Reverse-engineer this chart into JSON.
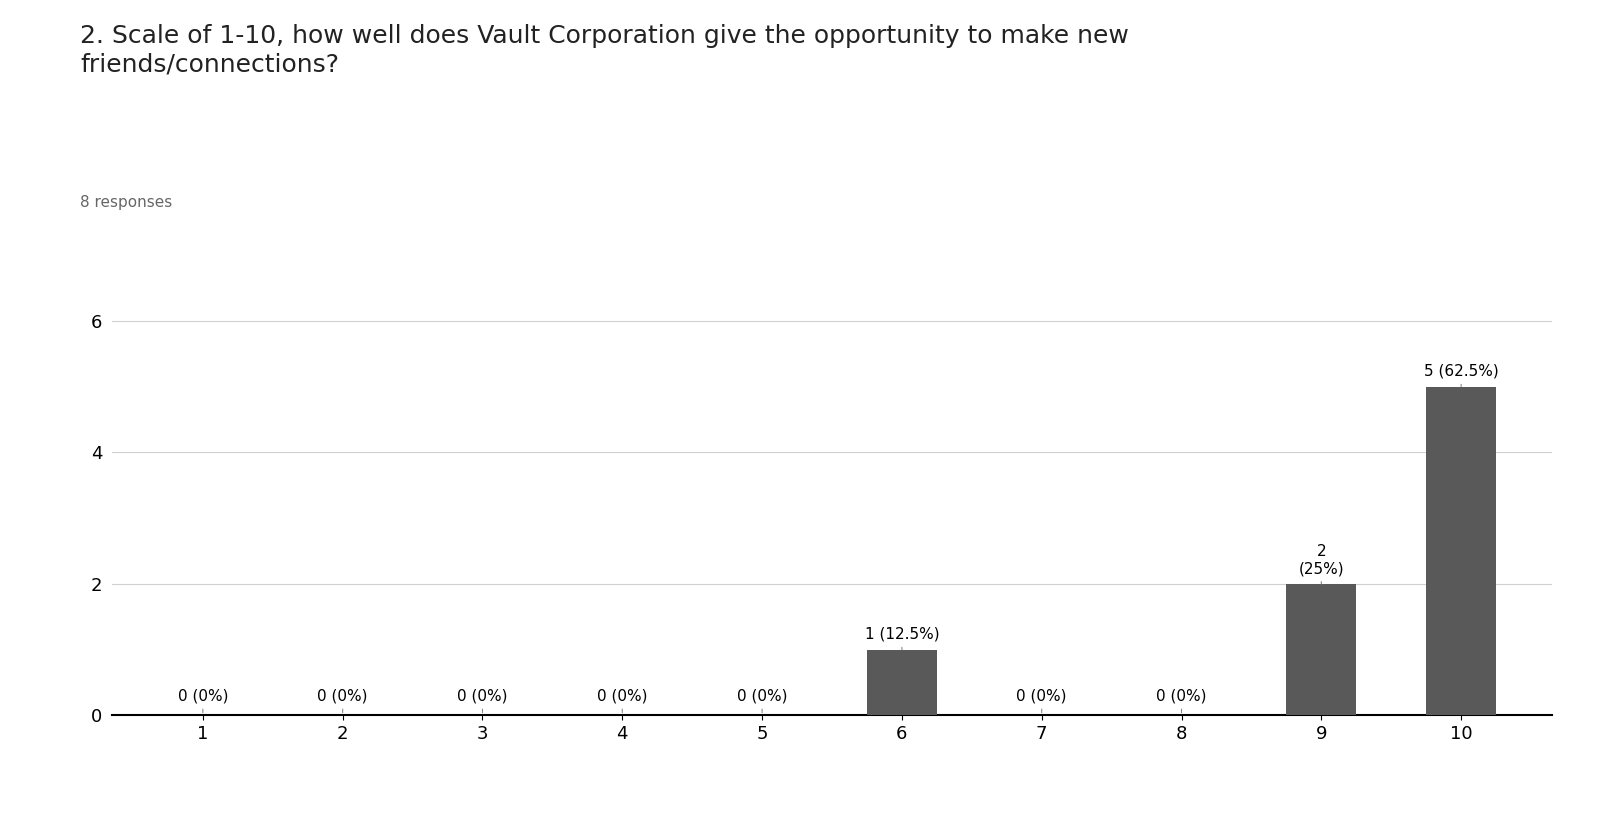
{
  "title_line1": "2. Scale of 1-10, how well does Vault Corporation give the opportunity to make new",
  "title_line2": "friends/connections?",
  "subtitle": "8 responses",
  "categories": [
    1,
    2,
    3,
    4,
    5,
    6,
    7,
    8,
    9,
    10
  ],
  "values": [
    0,
    0,
    0,
    0,
    0,
    1,
    0,
    0,
    2,
    5
  ],
  "bar_labels": [
    "0 (0%)",
    "0 (0%)",
    "0 (0%)",
    "0 (0%)",
    "0 (0%)",
    "1 (12.5%)",
    "0 (0%)",
    "0 (0%)",
    "2\n(25%)",
    "5 (62.5%)"
  ],
  "bar_color": "#595959",
  "background_color": "#ffffff",
  "ylim": [
    0,
    6.8
  ],
  "yticks": [
    0,
    2,
    4,
    6
  ],
  "title_fontsize": 18,
  "subtitle_fontsize": 11,
  "bar_label_fontsize": 11,
  "tick_fontsize": 13,
  "grid_color": "#d0d0d0"
}
